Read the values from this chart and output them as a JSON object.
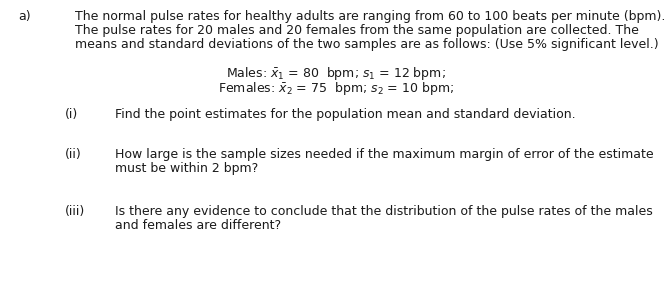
{
  "bg_color": "#ffffff",
  "text_color": "#1a1a1a",
  "label_a": "a)",
  "para_text": "The normal pulse rates for healthy adults are ranging from 60 to 100 beats per minute (bpm).\nThe pulse rates for 20 males and 20 females from the same population are collected. The\nmeans and standard deviations of the two samples are as follows: (Use 5% significant level.)",
  "males_line": "Males: $\\bar{x}_1$ = 80  bpm; $s_1$ = 12 bpm;",
  "females_line": "Females: $\\bar{x}_2$ = 75  bpm; $s_2$ = 10 bpm;",
  "item_i_label": "(i)",
  "item_i_text": "Find the point estimates for the population mean and standard deviation.",
  "item_ii_label": "(ii)",
  "item_ii_text_1": "How large is the sample sizes needed if the maximum margin of error of the estimate",
  "item_ii_text_2": "must be within 2 bpm?",
  "item_iii_label": "(iii)",
  "item_iii_text_1": "Is there any evidence to conclude that the distribution of the pulse rates of the males",
  "item_iii_text_2": "and females are different?",
  "font_size": 9.0
}
